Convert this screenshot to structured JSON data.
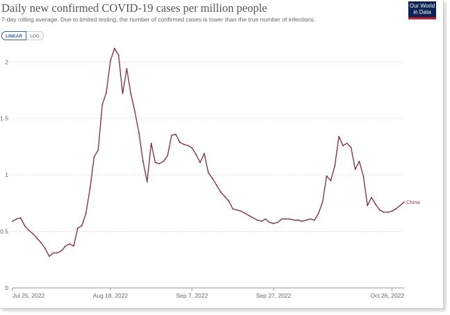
{
  "header": {
    "title": "Daily new confirmed COVID-19 cases per million people",
    "subtitle": "7-day rolling average. Due to limited testing, the number of confirmed cases is lower than the true number of infections.",
    "logo_line1": "Our World",
    "logo_line2": "in Data"
  },
  "toggles": {
    "linear_label": "LINEAR",
    "log_label": "LOG",
    "selected": "LINEAR"
  },
  "colors": {
    "series": "#8b2335",
    "label": "#b13b4a",
    "grid": "#dddddd"
  },
  "chart_data": {
    "type": "line",
    "title": "Daily new confirmed COVID-19 cases per million people",
    "subtitle": "7-day rolling average. Due to limited testing, the number of confirmed cases is lower than the true number of infections.",
    "x_range": [
      "2022-07-25",
      "2022-10-29"
    ],
    "ylim": [
      0,
      2.1
    ],
    "y_ticks": [
      0,
      0.5,
      1,
      1.5,
      2
    ],
    "y_tick_labels": [
      "0",
      "0.5",
      "1",
      "1.5",
      "2"
    ],
    "x_ticks": [
      "2022-07-25",
      "2022-08-18",
      "2022-09-07",
      "2022-09-27",
      "2022-10-26"
    ],
    "x_tick_labels": [
      "Jul 25, 2022",
      "Aug 18, 2022",
      "Sep 7, 2022",
      "Sep 27, 2022",
      "Oct 26, 2022"
    ],
    "grid": "horizontal dotted",
    "series": [
      {
        "name": "China",
        "points": [
          [
            "2022-07-25",
            0.59
          ],
          [
            "2022-07-26",
            0.61
          ],
          [
            "2022-07-27",
            0.62
          ],
          [
            "2022-07-28",
            0.55
          ],
          [
            "2022-07-29",
            0.51
          ],
          [
            "2022-07-30",
            0.48
          ],
          [
            "2022-07-31",
            0.44
          ],
          [
            "2022-08-01",
            0.4
          ],
          [
            "2022-08-02",
            0.35
          ],
          [
            "2022-08-03",
            0.28
          ],
          [
            "2022-08-04",
            0.31
          ],
          [
            "2022-08-05",
            0.31
          ],
          [
            "2022-08-06",
            0.33
          ],
          [
            "2022-08-07",
            0.37
          ],
          [
            "2022-08-08",
            0.39
          ],
          [
            "2022-08-09",
            0.37
          ],
          [
            "2022-08-10",
            0.53
          ],
          [
            "2022-08-11",
            0.55
          ],
          [
            "2022-08-12",
            0.66
          ],
          [
            "2022-08-13",
            0.88
          ],
          [
            "2022-08-14",
            1.16
          ],
          [
            "2022-08-15",
            1.22
          ],
          [
            "2022-08-16",
            1.62
          ],
          [
            "2022-08-17",
            1.73
          ],
          [
            "2022-08-18",
            2.01
          ],
          [
            "2022-08-19",
            2.12
          ],
          [
            "2022-08-20",
            2.06
          ],
          [
            "2022-08-21",
            1.72
          ],
          [
            "2022-08-22",
            1.94
          ],
          [
            "2022-08-23",
            1.72
          ],
          [
            "2022-08-24",
            1.56
          ],
          [
            "2022-08-25",
            1.37
          ],
          [
            "2022-08-26",
            1.12
          ],
          [
            "2022-08-27",
            0.94
          ],
          [
            "2022-08-28",
            1.28
          ],
          [
            "2022-08-29",
            1.11
          ],
          [
            "2022-08-30",
            1.1
          ],
          [
            "2022-08-31",
            1.12
          ],
          [
            "2022-09-01",
            1.17
          ],
          [
            "2022-09-02",
            1.35
          ],
          [
            "2022-09-03",
            1.36
          ],
          [
            "2022-09-04",
            1.29
          ],
          [
            "2022-09-05",
            1.27
          ],
          [
            "2022-09-06",
            1.26
          ],
          [
            "2022-09-07",
            1.24
          ],
          [
            "2022-09-08",
            1.18
          ],
          [
            "2022-09-09",
            1.11
          ],
          [
            "2022-09-10",
            1.19
          ],
          [
            "2022-09-11",
            1.02
          ],
          [
            "2022-09-12",
            0.97
          ],
          [
            "2022-09-13",
            0.91
          ],
          [
            "2022-09-14",
            0.85
          ],
          [
            "2022-09-15",
            0.81
          ],
          [
            "2022-09-16",
            0.77
          ],
          [
            "2022-09-17",
            0.7
          ],
          [
            "2022-09-18",
            0.69
          ],
          [
            "2022-09-19",
            0.68
          ],
          [
            "2022-09-20",
            0.66
          ],
          [
            "2022-09-21",
            0.64
          ],
          [
            "2022-09-22",
            0.62
          ],
          [
            "2022-09-23",
            0.6
          ],
          [
            "2022-09-24",
            0.59
          ],
          [
            "2022-09-25",
            0.61
          ],
          [
            "2022-09-26",
            0.58
          ],
          [
            "2022-09-27",
            0.57
          ],
          [
            "2022-09-28",
            0.58
          ],
          [
            "2022-09-29",
            0.61
          ],
          [
            "2022-09-30",
            0.61
          ],
          [
            "2022-10-01",
            0.61
          ],
          [
            "2022-10-02",
            0.6
          ],
          [
            "2022-10-03",
            0.6
          ],
          [
            "2022-10-04",
            0.59
          ],
          [
            "2022-10-05",
            0.6
          ],
          [
            "2022-10-06",
            0.61
          ],
          [
            "2022-10-07",
            0.6
          ],
          [
            "2022-10-08",
            0.66
          ],
          [
            "2022-10-09",
            0.76
          ],
          [
            "2022-10-10",
            0.99
          ],
          [
            "2022-10-11",
            0.95
          ],
          [
            "2022-10-12",
            1.08
          ],
          [
            "2022-10-13",
            1.34
          ],
          [
            "2022-10-14",
            1.26
          ],
          [
            "2022-10-15",
            1.28
          ],
          [
            "2022-10-16",
            1.24
          ],
          [
            "2022-10-17",
            1.05
          ],
          [
            "2022-10-18",
            1.12
          ],
          [
            "2022-10-19",
            0.99
          ],
          [
            "2022-10-20",
            0.73
          ],
          [
            "2022-10-21",
            0.8
          ],
          [
            "2022-10-22",
            0.74
          ],
          [
            "2022-10-23",
            0.69
          ],
          [
            "2022-10-24",
            0.67
          ],
          [
            "2022-10-25",
            0.67
          ],
          [
            "2022-10-26",
            0.68
          ],
          [
            "2022-10-27",
            0.7
          ],
          [
            "2022-10-28",
            0.73
          ],
          [
            "2022-10-29",
            0.76
          ]
        ]
      }
    ]
  }
}
